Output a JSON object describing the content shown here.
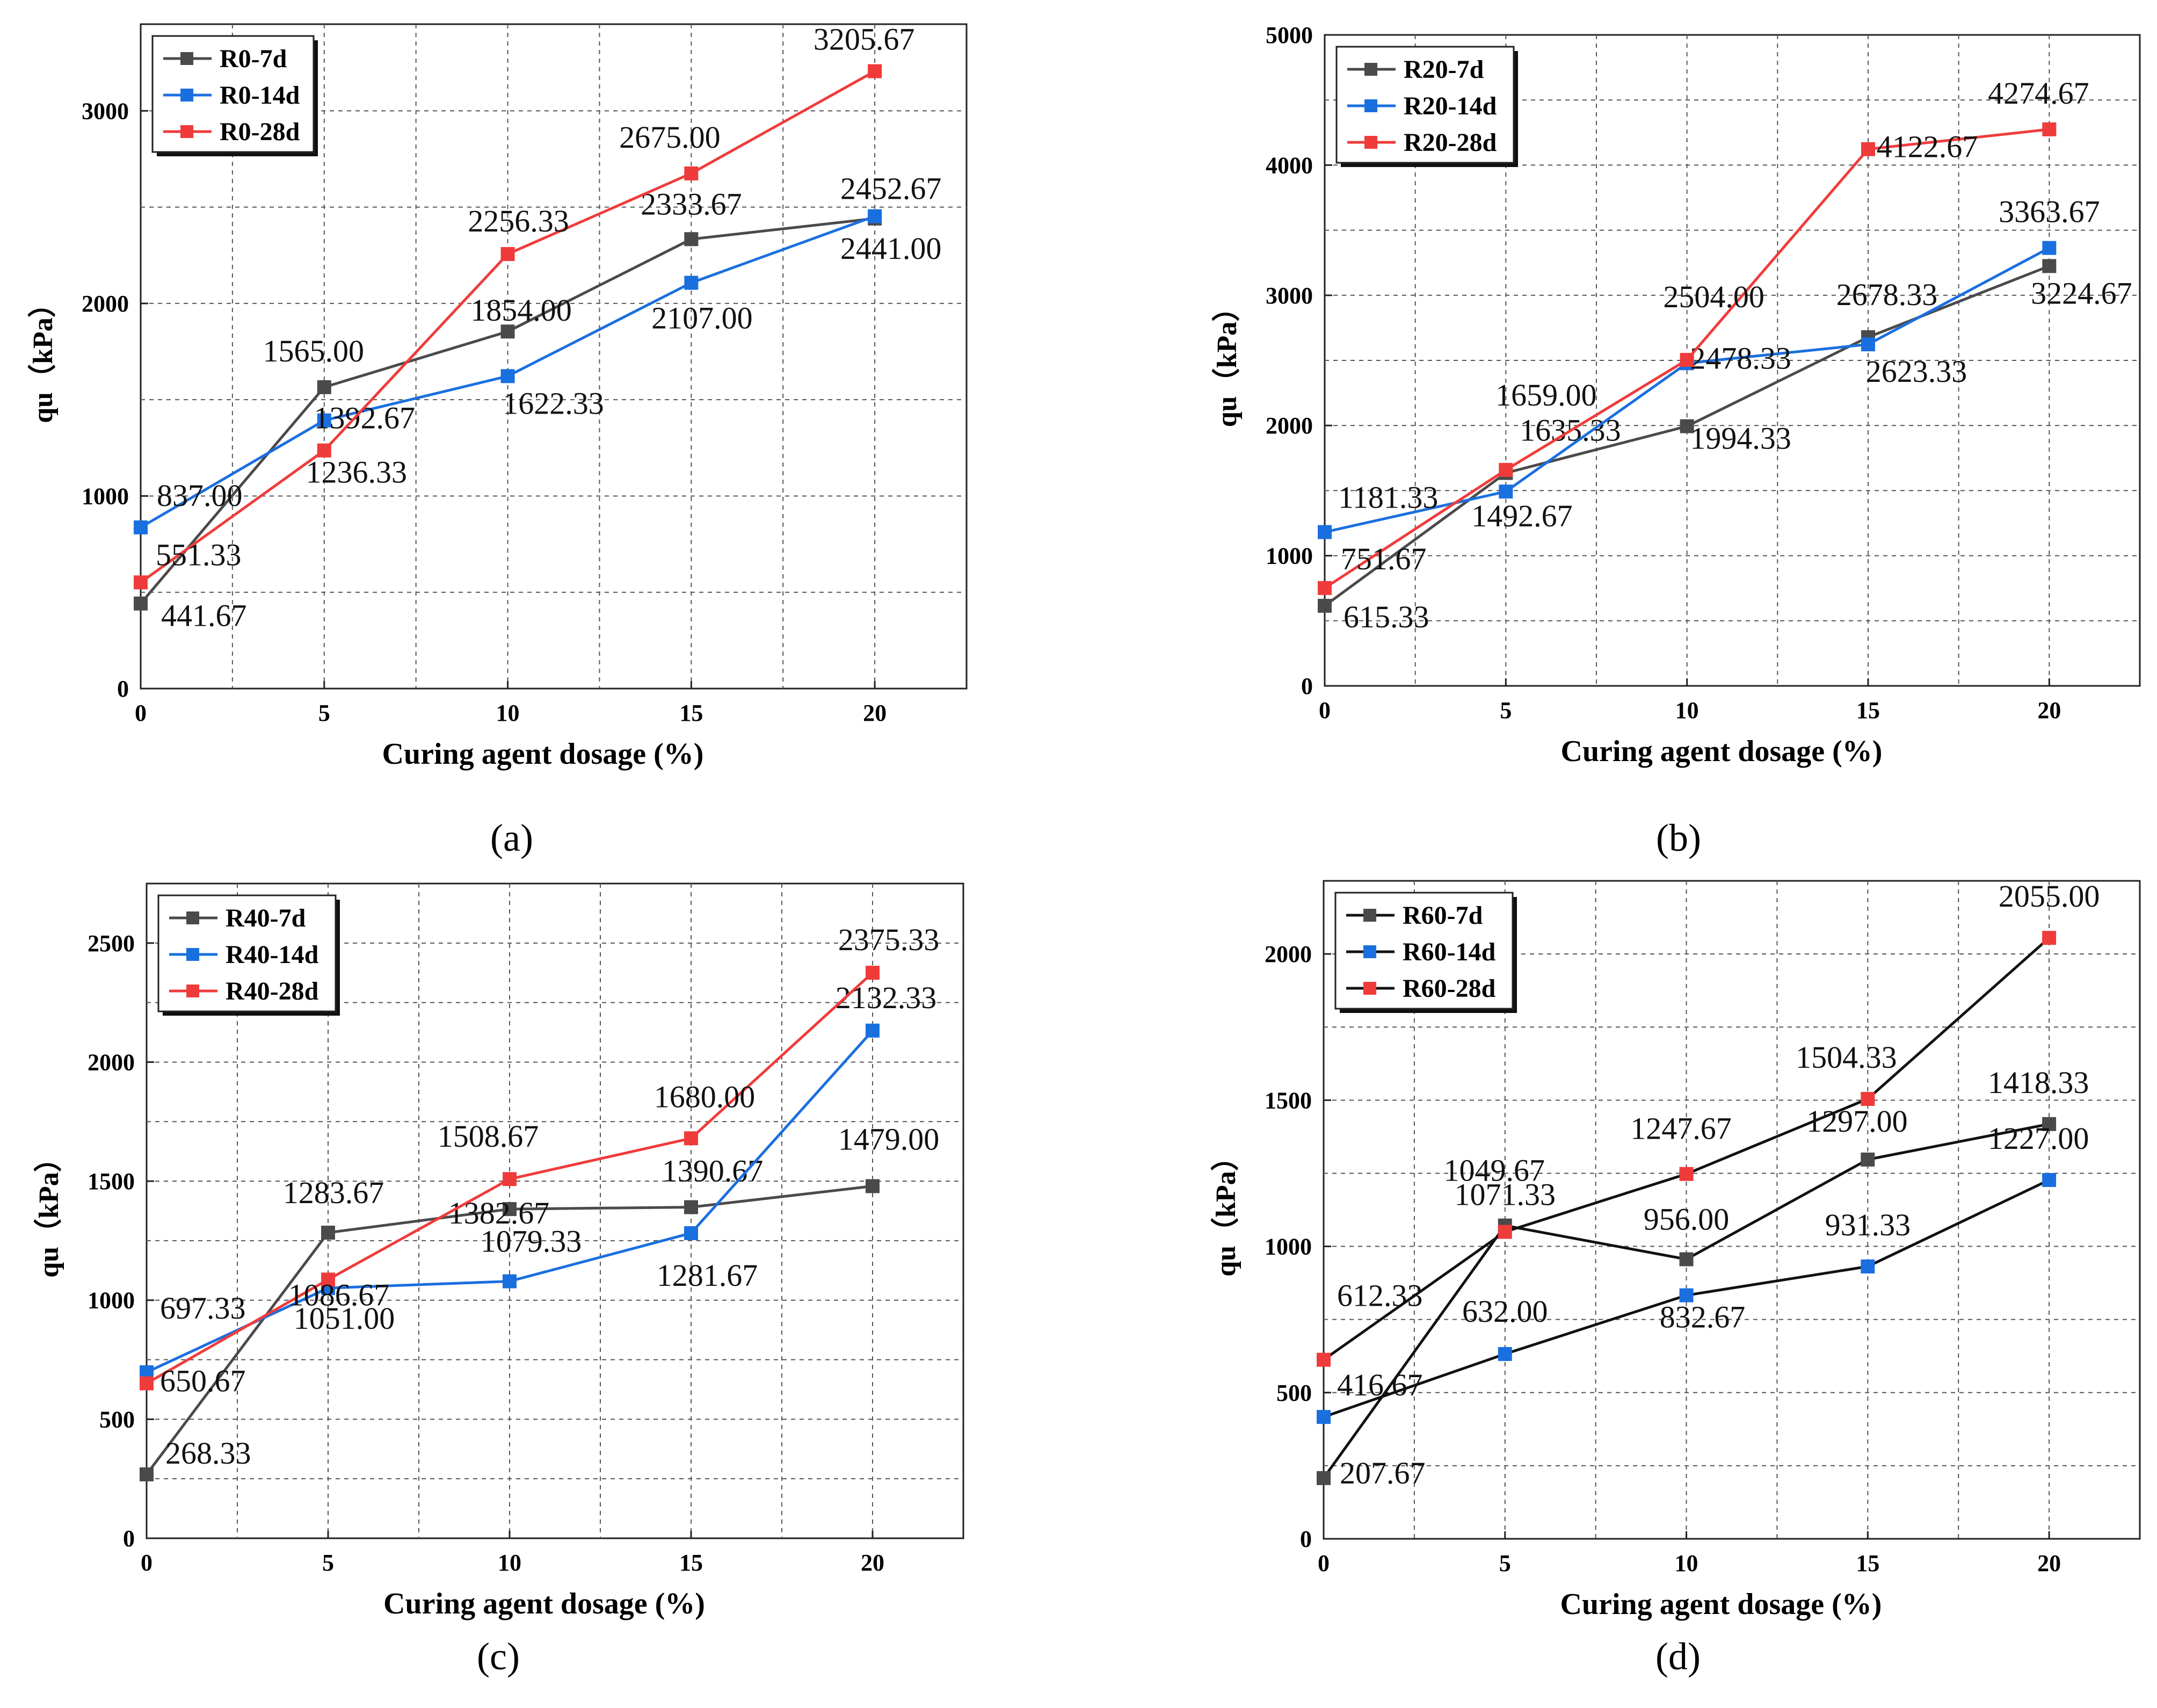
{
  "chart_data": [
    {
      "type": "line",
      "panel_label": "(a)",
      "x": [
        0,
        5,
        10,
        15,
        20
      ],
      "xlabel": "Curing agent dosage (%)",
      "ylabel": "qu（kPa）",
      "ylim": [
        0,
        3450
      ],
      "xlim": [
        0,
        22.5
      ],
      "yticks": [
        0,
        1000,
        2000,
        3000
      ],
      "xticks": [
        0,
        5,
        10,
        15,
        20
      ],
      "grid": true,
      "legend_position": "top-left",
      "series": [
        {
          "name": "R0-7d",
          "color": "#4a4a4a",
          "values": [
            441.67,
            1565.0,
            1854.0,
            2333.67,
            2441.0
          ],
          "labels": [
            "441.67",
            "1565.00",
            "1854.00",
            "2333.67",
            "2441.00"
          ]
        },
        {
          "name": "R0-14d",
          "color": "#1a6fdf",
          "values": [
            837.0,
            1392.67,
            1622.33,
            2107.0,
            2452.67
          ],
          "labels": [
            "837.00",
            "1392.67",
            "1622.33",
            "2107.00",
            "2452.67"
          ]
        },
        {
          "name": "R0-28d",
          "color": "#f03b3b",
          "values": [
            551.33,
            1236.33,
            2256.33,
            2675.0,
            3205.67
          ],
          "labels": [
            "551.33",
            "1236.33",
            "2256.33",
            "2675.00",
            "3205.67"
          ]
        }
      ]
    },
    {
      "type": "line",
      "panel_label": "(b)",
      "x": [
        0,
        5,
        10,
        15,
        20
      ],
      "xlabel": "Curing agent dosage (%)",
      "ylabel": "qu（kPa）",
      "ylim": [
        0,
        5000
      ],
      "xlim": [
        0,
        22.5
      ],
      "yticks": [
        0,
        1000,
        2000,
        3000,
        4000,
        5000
      ],
      "xticks": [
        0,
        5,
        10,
        15,
        20
      ],
      "grid": true,
      "legend_position": "top-left",
      "series": [
        {
          "name": "R20-7d",
          "color": "#4a4a4a",
          "values": [
            615.33,
            1635.33,
            1994.33,
            2678.33,
            3224.67
          ],
          "labels": [
            "615.33",
            "1635.33",
            "1994.33",
            "2678.33",
            "3224.67"
          ]
        },
        {
          "name": "R20-14d",
          "color": "#1a6fdf",
          "values": [
            1181.33,
            1492.67,
            2478.33,
            2623.33,
            3363.67
          ],
          "labels": [
            "1181.33",
            "1492.67",
            "2478.33",
            "2623.33",
            "3363.67"
          ]
        },
        {
          "name": "R20-28d",
          "color": "#f03b3b",
          "values": [
            751.67,
            1659.0,
            2504.0,
            4122.67,
            4274.67
          ],
          "labels": [
            "751.67",
            "1659.00",
            "2504.00",
            "4122.67",
            "4274.67"
          ]
        }
      ]
    },
    {
      "type": "line",
      "panel_label": "(c)",
      "x": [
        0,
        5,
        10,
        15,
        20
      ],
      "xlabel": "Curing agent dosage (%)",
      "ylabel": "qu（kPa）",
      "ylim": [
        0,
        2750
      ],
      "xlim": [
        0,
        22.5
      ],
      "yticks": [
        0,
        500,
        1000,
        1500,
        2000,
        2500
      ],
      "xticks": [
        0,
        5,
        10,
        15,
        20
      ],
      "grid": true,
      "legend_position": "top-left",
      "series": [
        {
          "name": "R40-7d",
          "color": "#4a4a4a",
          "values": [
            268.33,
            1283.67,
            1382.67,
            1390.67,
            1479.0
          ],
          "labels": [
            "268.33",
            "1283.67",
            "1382.67",
            "1390.67",
            "1479.00"
          ]
        },
        {
          "name": "R40-14d",
          "color": "#1a6fdf",
          "values": [
            697.33,
            1051.0,
            1079.33,
            1281.67,
            2132.33
          ],
          "labels": [
            "697.33",
            "1051.00",
            "1079.33",
            "1281.67",
            "2132.33"
          ]
        },
        {
          "name": "R40-28d",
          "color": "#f03b3b",
          "values": [
            650.67,
            1086.67,
            1508.67,
            1680.0,
            2375.33
          ],
          "labels": [
            "650.67",
            "1086.67",
            "1508.67",
            "1680.00",
            "2375.33"
          ]
        }
      ]
    },
    {
      "type": "line",
      "panel_label": "(d)",
      "x": [
        0,
        5,
        10,
        15,
        20
      ],
      "xlabel": "Curing agent dosage (%)",
      "ylabel": "qu（kPa）",
      "ylim": [
        0,
        2250
      ],
      "xlim": [
        0,
        22.5
      ],
      "yticks": [
        0,
        500,
        1000,
        1500,
        2000
      ],
      "xticks": [
        0,
        5,
        10,
        15,
        20
      ],
      "grid": true,
      "legend_position": "top-left",
      "line_color": "#111111",
      "series": [
        {
          "name": "R60-7d",
          "color": "#4a4a4a",
          "values": [
            207.67,
            1071.33,
            956.0,
            1297.0,
            1418.33
          ],
          "labels": [
            "207.67",
            "1071.33",
            "956.00",
            "1297.00",
            "1418.33"
          ]
        },
        {
          "name": "R60-14d",
          "color": "#1a6fdf",
          "values": [
            416.67,
            632.0,
            832.67,
            931.33,
            1227.0
          ],
          "labels": [
            "416.67",
            "632.00",
            "832.67",
            "931.33",
            "1227.00"
          ]
        },
        {
          "name": "R60-28d",
          "color": "#f03b3b",
          "values": [
            612.33,
            1049.67,
            1247.67,
            1504.33,
            2055.0
          ],
          "labels": [
            "612.33",
            "1049.67",
            "1247.67",
            "1504.33",
            "2055.00"
          ]
        }
      ]
    }
  ]
}
